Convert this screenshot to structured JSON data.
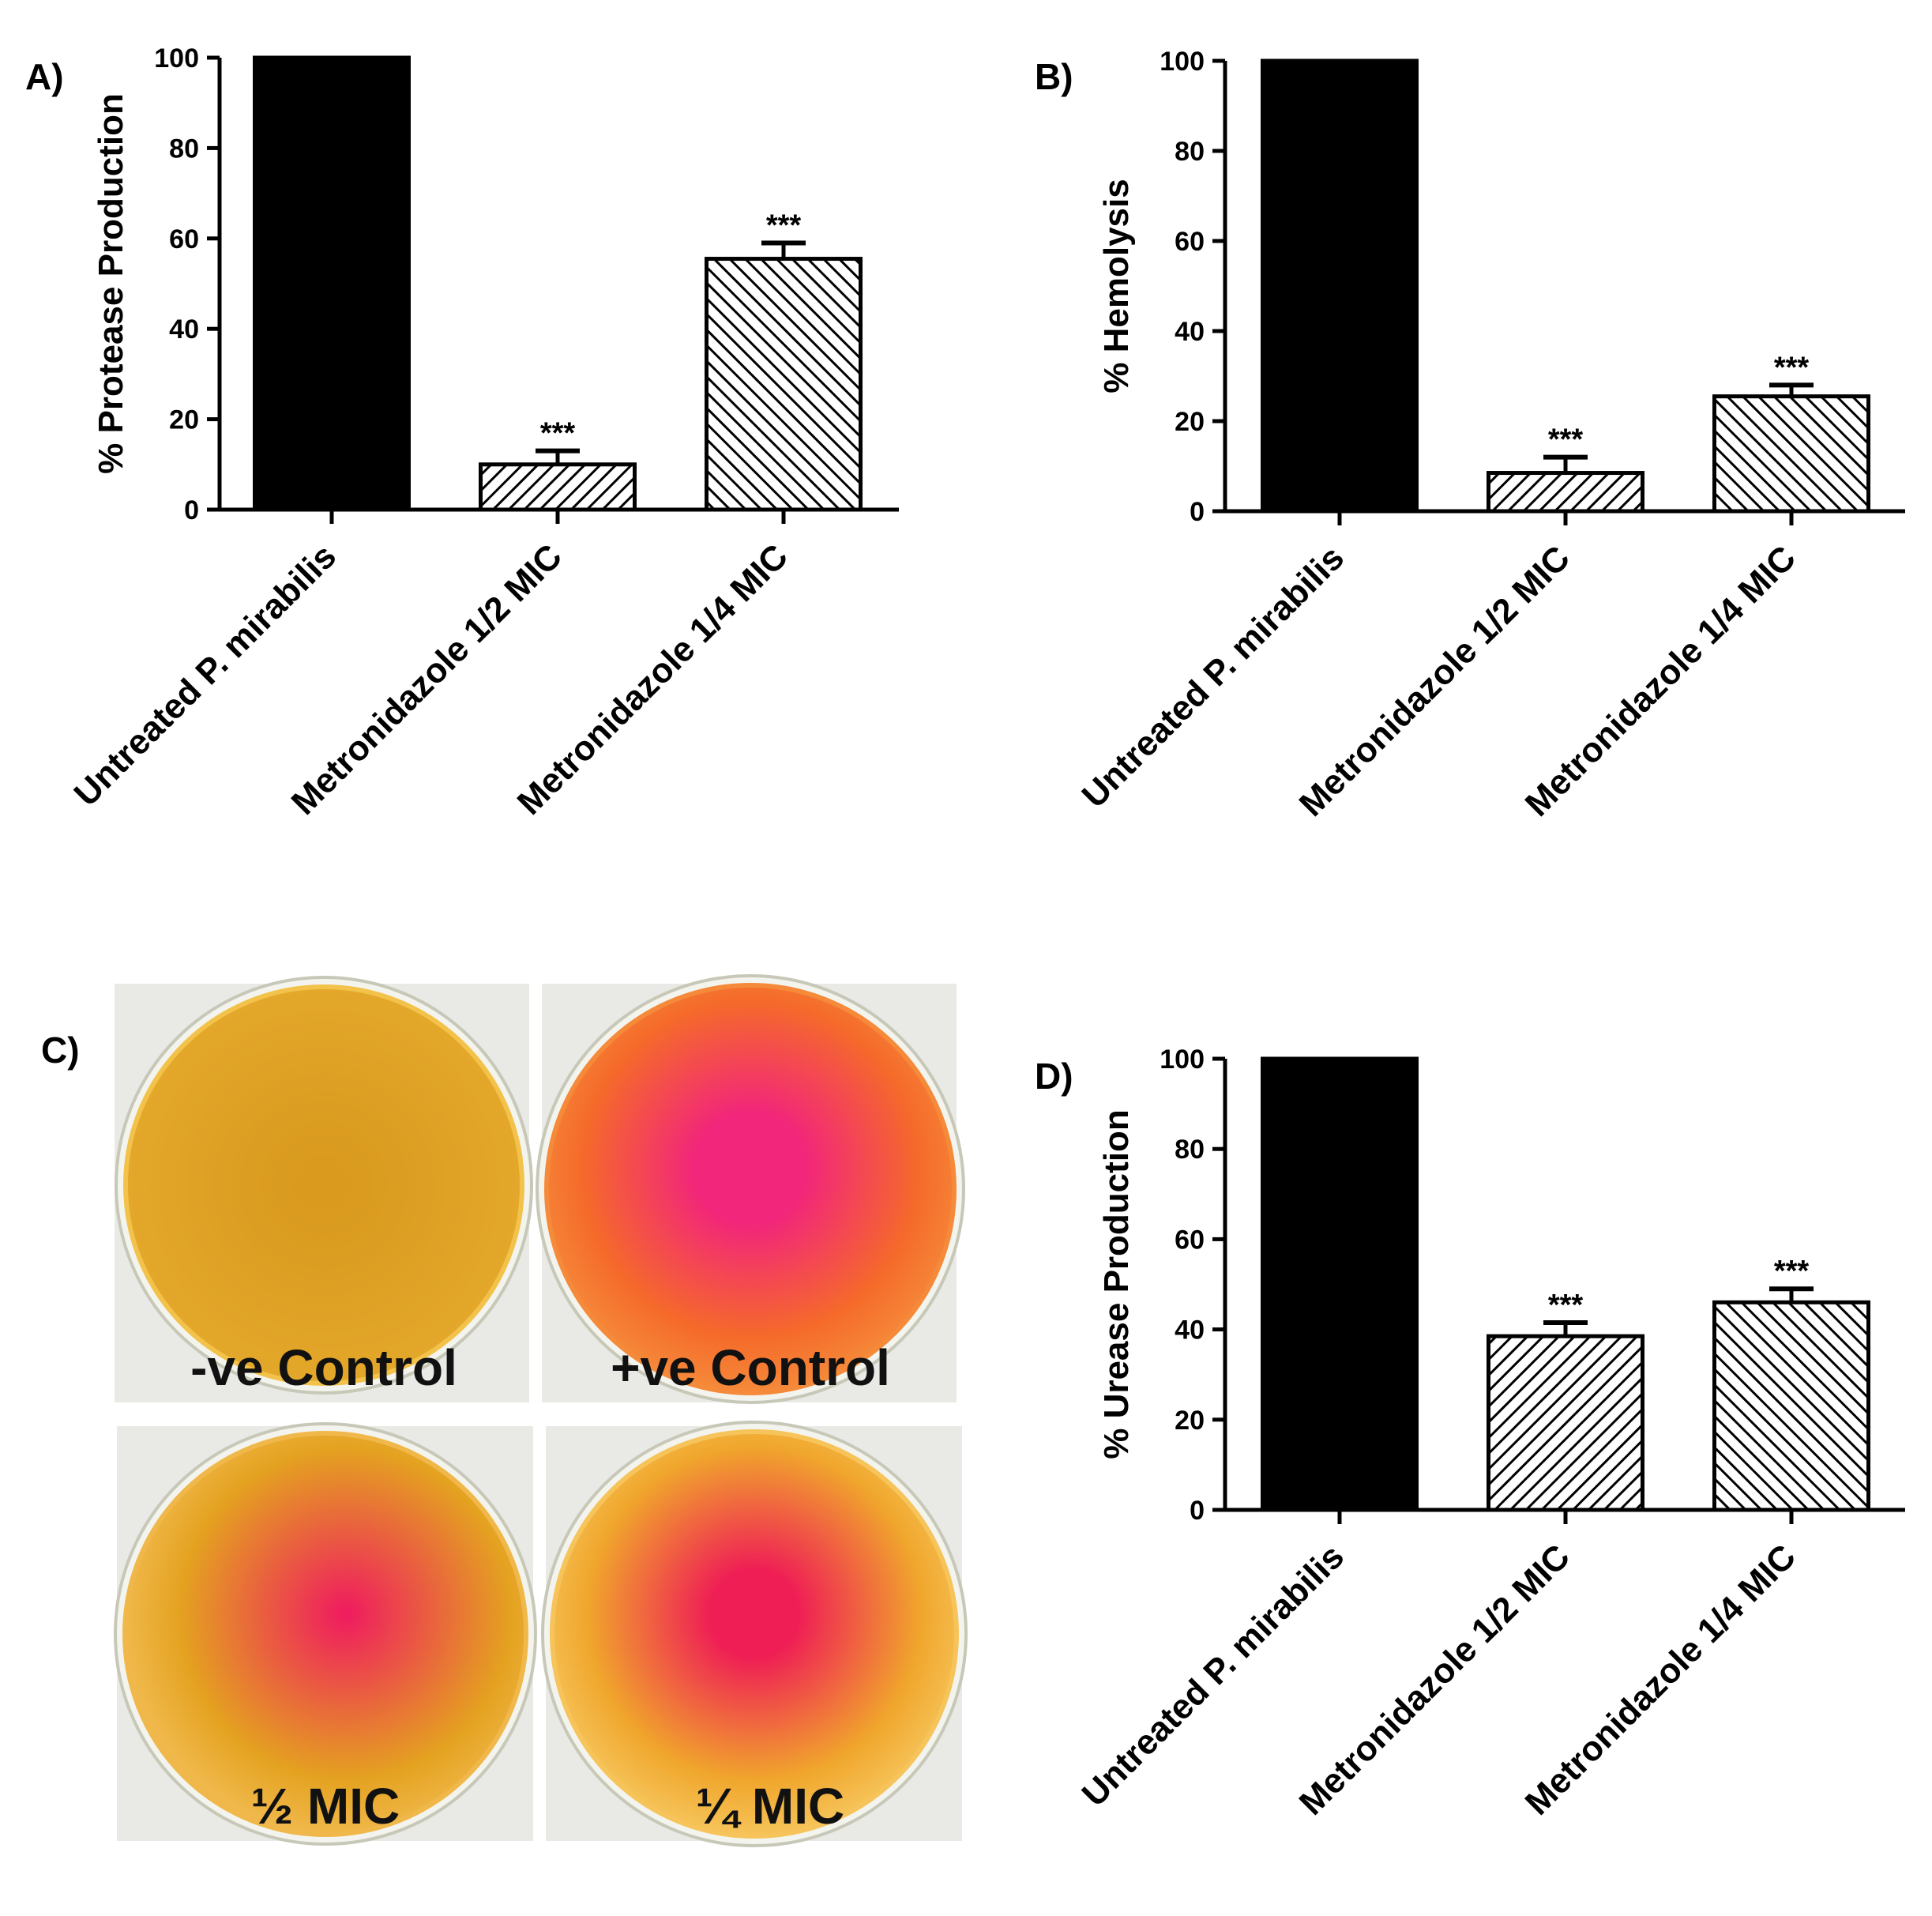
{
  "panel_c": {
    "letter": "C)",
    "plates": [
      {
        "label": "-ve Control",
        "center_color": "#d99a1e",
        "edge_color": "#e3a72a",
        "rim_color": "#f2c24a"
      },
      {
        "label": "+ve Control",
        "center_color": "#f2267a",
        "edge_color": "#f56a2a",
        "rim_color": "#f58a3a"
      },
      {
        "label": "½ MIC",
        "center_color": "#ef1e5e",
        "edge_color": "#e4a220",
        "rim_color": "#f0b84a"
      },
      {
        "label": "¼ MIC",
        "center_color": "#ef1f55",
        "edge_color": "#f0a62c",
        "rim_color": "#f6c45a"
      }
    ]
  },
  "chart_data": [
    {
      "type": "bar",
      "letter": "A)",
      "title": "",
      "xlabel": "",
      "ylabel": "% Protease Production",
      "ylim": [
        0,
        100
      ],
      "yticks": [
        0,
        20,
        40,
        60,
        80,
        100
      ],
      "categories": [
        "Untreated P. mirabilis",
        "Metronidazole 1/2 MIC",
        "Metronidazole 1/4 MIC"
      ],
      "values": [
        100,
        10,
        55.5
      ],
      "errors": [
        0,
        3,
        3.5
      ],
      "significance": [
        "",
        "***",
        "***"
      ],
      "fills": [
        "solid",
        "hatch-right",
        "hatch-left"
      ]
    },
    {
      "type": "bar",
      "letter": "B)",
      "title": "",
      "xlabel": "",
      "ylabel": "% Hemolysis",
      "ylim": [
        0,
        100
      ],
      "yticks": [
        0,
        20,
        40,
        60,
        80,
        100
      ],
      "categories": [
        "Untreated P. mirabilis",
        "Metronidazole 1/2 MIC",
        "Metronidazole 1/4 MIC"
      ],
      "values": [
        100,
        8.5,
        25.5
      ],
      "errors": [
        0,
        3.5,
        2.5
      ],
      "significance": [
        "",
        "***",
        "***"
      ],
      "fills": [
        "solid",
        "hatch-right",
        "hatch-left"
      ]
    },
    {
      "type": "bar",
      "letter": "D)",
      "title": "",
      "xlabel": "",
      "ylabel": "% Urease Production",
      "ylim": [
        0,
        100
      ],
      "yticks": [
        0,
        20,
        40,
        60,
        80,
        100
      ],
      "categories": [
        "Untreated P. mirabilis",
        "Metronidazole 1/2 MIC",
        "Metronidazole 1/4 MIC"
      ],
      "values": [
        100,
        38.5,
        46
      ],
      "errors": [
        0,
        3,
        3
      ],
      "significance": [
        "",
        "***",
        "***"
      ],
      "fills": [
        "solid",
        "hatch-right",
        "hatch-left"
      ]
    }
  ]
}
